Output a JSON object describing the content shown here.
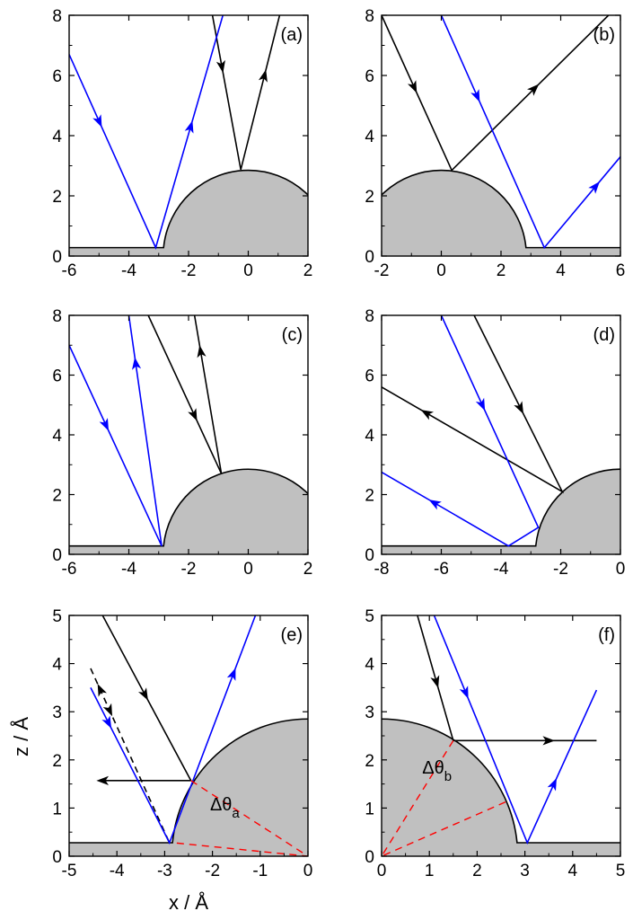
{
  "colors": {
    "black_ray": "#000000",
    "blue_ray": "#0000ff",
    "red_dashed": "#ff0000",
    "solid_fill": "#c0c0c0"
  },
  "chart_data": [
    {
      "panel": "(a)",
      "type": "line",
      "xlim": [
        -6,
        2
      ],
      "ylim": [
        0,
        8
      ],
      "xticks": [
        -6,
        -4,
        -2,
        0,
        2
      ],
      "yticks": [
        0,
        2,
        4,
        6,
        8
      ],
      "substrate": {
        "bump_center": 0,
        "bump_radius": 2.85,
        "floor_height": 0.28
      },
      "series": [
        {
          "color": "black",
          "x": [
            -1.2,
            -0.25,
            1.05
          ],
          "y": [
            8,
            2.87,
            8
          ],
          "arrows": [
            [
              -0.8,
              6.3,
              "down"
            ],
            [
              0.55,
              6.0,
              "up"
            ]
          ]
        },
        {
          "color": "blue",
          "x": [
            -6,
            -3.1,
            -0.85
          ],
          "y": [
            6.7,
            0.28,
            8
          ],
          "arrows": [
            [
              -4.9,
              4.5,
              "down"
            ],
            [
              -1.9,
              4.3,
              "up"
            ]
          ]
        }
      ]
    },
    {
      "panel": "(b)",
      "type": "line",
      "xlim": [
        -2,
        6
      ],
      "ylim": [
        0,
        8
      ],
      "xticks": [
        -2,
        0,
        2,
        4,
        6
      ],
      "yticks": [
        0,
        2,
        4,
        6,
        8
      ],
      "substrate": {
        "bump_center": 0,
        "bump_radius": 2.85,
        "floor_height": 0.28
      },
      "series": [
        {
          "color": "black",
          "x": [
            -2,
            0.35,
            5.6
          ],
          "y": [
            8,
            2.85,
            8
          ],
          "arrows": [
            [
              -0.9,
              5.6,
              "down"
            ],
            [
              2.8,
              5.9,
              "up"
            ]
          ]
        },
        {
          "color": "blue",
          "x": [
            0,
            3.45,
            6
          ],
          "y": [
            8,
            0.28,
            3.3
          ],
          "arrows": [
            [
              1.2,
              5.3,
              "down"
            ],
            [
              5.2,
              2.3,
              "up"
            ]
          ]
        }
      ]
    },
    {
      "panel": "(c)",
      "type": "line",
      "xlim": [
        -6,
        2
      ],
      "ylim": [
        0,
        8
      ],
      "xticks": [
        -6,
        -4,
        -2,
        0,
        2
      ],
      "yticks": [
        0,
        2,
        4,
        6,
        8
      ],
      "substrate": {
        "bump_center": 0,
        "bump_radius": 2.85,
        "floor_height": 0.28
      },
      "series": [
        {
          "color": "black",
          "x": [
            -3.35,
            -0.9,
            -1.8
          ],
          "y": [
            8,
            2.7,
            8
          ],
          "arrows": [
            [
              -1.9,
              4.6,
              "down"
            ],
            [
              -1.6,
              6.8,
              "up"
            ]
          ]
        },
        {
          "color": "blue",
          "x": [
            -6,
            -2.9,
            -4.0
          ],
          "y": [
            7.0,
            0.28,
            8
          ],
          "arrows": [
            [
              -4.8,
              4.3,
              "down"
            ],
            [
              -3.75,
              6.4,
              "up"
            ]
          ]
        }
      ]
    },
    {
      "panel": "(d)",
      "type": "line",
      "xlim": [
        -8,
        0
      ],
      "ylim": [
        0,
        8
      ],
      "xticks": [
        -8,
        -6,
        -4,
        -2,
        0
      ],
      "yticks": [
        0,
        2,
        4,
        6,
        8
      ],
      "substrate": {
        "bump_center": 0,
        "bump_radius": 2.85,
        "floor_height": 0.28
      },
      "series": [
        {
          "color": "black",
          "x": [
            -4.9,
            -1.95,
            -8
          ],
          "y": [
            8,
            2.1,
            5.6
          ],
          "arrows": [
            [
              -3.3,
              4.9,
              "down"
            ],
            [
              -6.5,
              4.75,
              "left"
            ]
          ]
        },
        {
          "color": "blue",
          "x": [
            -6.0,
            -2.75,
            -3.75,
            -8
          ],
          "y": [
            8,
            0.9,
            0.28,
            2.75
          ],
          "arrows": [
            [
              -4.6,
              5.0,
              "down"
            ],
            [
              -6.2,
              1.8,
              "left"
            ]
          ]
        }
      ]
    },
    {
      "panel": "(e)",
      "type": "line",
      "xlim": [
        -5,
        0
      ],
      "ylim": [
        0,
        5
      ],
      "xticks": [
        -5,
        -4,
        -3,
        -2,
        -1,
        0
      ],
      "yticks": [
        0,
        1,
        2,
        3,
        4,
        5
      ],
      "xlabel": "x / Å",
      "ylabel": "z / Å",
      "substrate": {
        "bump_center": 0,
        "bump_radius": 2.85,
        "floor_height": 0.28
      },
      "annotation": "Δθ",
      "annotation_subscript": "a",
      "series": [
        {
          "color": "black",
          "x": [
            -4.3,
            -2.45,
            -4.3
          ],
          "y": [
            5,
            1.57,
            1.57
          ],
          "arrows": [
            [
              -3.4,
              3.35,
              "down"
            ],
            [
              -4.3,
              1.57,
              "left"
            ]
          ]
        },
        {
          "color": "black_dashed",
          "x": [
            -4.55,
            -2.9
          ],
          "y": [
            3.9,
            0.28
          ],
          "arrows": [
            [
              -4.38,
              3.45,
              "up"
            ],
            [
              -4.2,
              3.0,
              "down"
            ]
          ]
        },
        {
          "color": "blue",
          "x": [
            -4.55,
            -2.9,
            -1.1
          ],
          "y": [
            3.5,
            0.28,
            5
          ],
          "arrows": [
            [
              -4.2,
              2.75,
              "down"
            ],
            [
              -1.45,
              3.75,
              "up"
            ]
          ]
        },
        {
          "color": "red_dashed",
          "x": [
            -2.45,
            0,
            -2.82
          ],
          "y": [
            1.57,
            0,
            0.28
          ]
        }
      ]
    },
    {
      "panel": "(f)",
      "type": "line",
      "xlim": [
        0,
        5
      ],
      "ylim": [
        0,
        5
      ],
      "xticks": [
        0,
        1,
        2,
        3,
        4,
        5
      ],
      "yticks": [
        0,
        1,
        2,
        3,
        4,
        5
      ],
      "substrate": {
        "bump_center": 0,
        "bump_radius": 2.85,
        "floor_height": 0.28
      },
      "annotation": "Δθ",
      "annotation_subscript": "b",
      "series": [
        {
          "color": "black",
          "x": [
            0.75,
            1.5,
            4.5
          ],
          "y": [
            5,
            2.4,
            2.4
          ],
          "arrows": [
            [
              1.1,
              3.6,
              "down"
            ],
            [
              3.5,
              2.4,
              "right"
            ]
          ]
        },
        {
          "color": "blue",
          "x": [
            1.1,
            3.05,
            4.5
          ],
          "y": [
            5,
            0.28,
            3.45
          ],
          "arrows": [
            [
              1.8,
              3.4,
              "down"
            ],
            [
              3.85,
              1.4,
              "up"
            ]
          ]
        },
        {
          "color": "red_dashed",
          "x": [
            1.5,
            0,
            2.65
          ],
          "y": [
            2.4,
            0,
            1.15
          ]
        }
      ]
    }
  ]
}
